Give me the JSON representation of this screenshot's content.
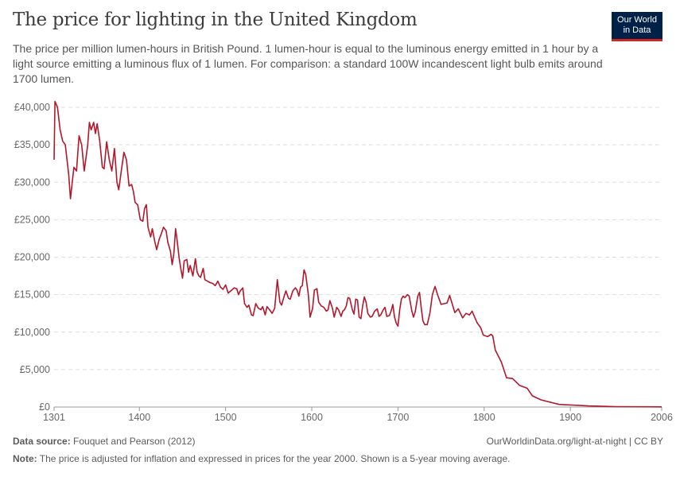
{
  "header": {
    "title": "The price for lighting in the United Kingdom",
    "subtitle": "The price per million lumen-hours in British Pound. 1 lumen-hour is equal to the luminous energy emitted in 1 hour by a light source emitting a luminous flux of 1 lumen. For comparison: a standard 100W incandescent light bulb emits around 1700 lumen.",
    "logo_line1": "Our World",
    "logo_line2": "in Data"
  },
  "footer": {
    "source_label": "Data source:",
    "source": "Fouquet and Pearson (2012)",
    "url": "OurWorldinData.org/light-at-night | CC BY",
    "note_label": "Note:",
    "note": "The price is adjusted for inflation and expressed in prices for the year 2000. Shown is a 5-year moving average."
  },
  "colors": {
    "line": "#b2182b",
    "grid": "#dddddd",
    "logo_bg": "#002147",
    "logo_accent": "#ce261e"
  },
  "chart_data": {
    "type": "line",
    "title": "The price for lighting in the United Kingdom",
    "xlim": [
      1301,
      2006
    ],
    "ylim": [
      0,
      40000
    ],
    "grid": "horizontal dashed",
    "y_ticks": [
      0,
      5000,
      10000,
      15000,
      20000,
      25000,
      30000,
      35000,
      40000
    ],
    "y_tick_labels": [
      "£0",
      "£5,000",
      "£10,000",
      "£15,000",
      "£20,000",
      "£25,000",
      "£30,000",
      "£35,000",
      "£40,000"
    ],
    "x_ticks": [
      1301,
      1400,
      1500,
      1600,
      1700,
      1800,
      1900,
      2006
    ],
    "x_tick_labels": [
      "1301",
      "1400",
      "1500",
      "1600",
      "1700",
      "1800",
      "1900",
      "2006"
    ],
    "series": [
      {
        "points": [
          [
            1301,
            33000
          ],
          [
            1302,
            40800
          ],
          [
            1305,
            40000
          ],
          [
            1308,
            37000
          ],
          [
            1311,
            35500
          ],
          [
            1314,
            35000
          ],
          [
            1318,
            31000
          ],
          [
            1320,
            27800
          ],
          [
            1324,
            32000
          ],
          [
            1327,
            31500
          ],
          [
            1330,
            36200
          ],
          [
            1333,
            35000
          ],
          [
            1336,
            31500
          ],
          [
            1340,
            35000
          ],
          [
            1342,
            38000
          ],
          [
            1344,
            37000
          ],
          [
            1347,
            38000
          ],
          [
            1349,
            36500
          ],
          [
            1351,
            37800
          ],
          [
            1354,
            35500
          ],
          [
            1357,
            32000
          ],
          [
            1359,
            31800
          ],
          [
            1362,
            35400
          ],
          [
            1365,
            33000
          ],
          [
            1368,
            31500
          ],
          [
            1371,
            34500
          ],
          [
            1374,
            30000
          ],
          [
            1376,
            29000
          ],
          [
            1379,
            31500
          ],
          [
            1382,
            34000
          ],
          [
            1385,
            33000
          ],
          [
            1388,
            29500
          ],
          [
            1391,
            29700
          ],
          [
            1393,
            28800
          ],
          [
            1395,
            27300
          ],
          [
            1398,
            27000
          ],
          [
            1401,
            25000
          ],
          [
            1404,
            24800
          ],
          [
            1406,
            26500
          ],
          [
            1408,
            27000
          ],
          [
            1410,
            24000
          ],
          [
            1413,
            22700
          ],
          [
            1415,
            23800
          ],
          [
            1418,
            22000
          ],
          [
            1420,
            21000
          ],
          [
            1423,
            22400
          ],
          [
            1425,
            23000
          ],
          [
            1428,
            24000
          ],
          [
            1431,
            23500
          ],
          [
            1433,
            22000
          ],
          [
            1436,
            20800
          ],
          [
            1438,
            19000
          ],
          [
            1440,
            20500
          ],
          [
            1442,
            23800
          ],
          [
            1444,
            22000
          ],
          [
            1446,
            20000
          ],
          [
            1448,
            18500
          ],
          [
            1450,
            17200
          ],
          [
            1452,
            19500
          ],
          [
            1455,
            19700
          ],
          [
            1457,
            18000
          ],
          [
            1459,
            18900
          ],
          [
            1462,
            17500
          ],
          [
            1465,
            19800
          ],
          [
            1467,
            18000
          ],
          [
            1469,
            17500
          ],
          [
            1471,
            17300
          ],
          [
            1474,
            18500
          ],
          [
            1476,
            17000
          ],
          [
            1479,
            16800
          ],
          [
            1482,
            16600
          ],
          [
            1485,
            16500
          ],
          [
            1488,
            16200
          ],
          [
            1491,
            16800
          ],
          [
            1494,
            16000
          ],
          [
            1497,
            15700
          ],
          [
            1500,
            16300
          ],
          [
            1503,
            15200
          ],
          [
            1506,
            15500
          ],
          [
            1510,
            15900
          ],
          [
            1513,
            15800
          ],
          [
            1515,
            15000
          ],
          [
            1517,
            15500
          ],
          [
            1520,
            15900
          ],
          [
            1522,
            13800
          ],
          [
            1525,
            13300
          ],
          [
            1527,
            13600
          ],
          [
            1530,
            12300
          ],
          [
            1532,
            12200
          ],
          [
            1535,
            13800
          ],
          [
            1538,
            13200
          ],
          [
            1541,
            13000
          ],
          [
            1543,
            13400
          ],
          [
            1546,
            12300
          ],
          [
            1548,
            13400
          ],
          [
            1551,
            13000
          ],
          [
            1554,
            12500
          ],
          [
            1557,
            13200
          ],
          [
            1560,
            17000
          ],
          [
            1563,
            14000
          ],
          [
            1565,
            13600
          ],
          [
            1568,
            14800
          ],
          [
            1570,
            15500
          ],
          [
            1573,
            14500
          ],
          [
            1575,
            14400
          ],
          [
            1578,
            15500
          ],
          [
            1581,
            15900
          ],
          [
            1583,
            15600
          ],
          [
            1585,
            14800
          ],
          [
            1587,
            16000
          ],
          [
            1589,
            16200
          ],
          [
            1591,
            18300
          ],
          [
            1593,
            17700
          ],
          [
            1596,
            15000
          ],
          [
            1598,
            12000
          ],
          [
            1601,
            13200
          ],
          [
            1603,
            15600
          ],
          [
            1606,
            15800
          ],
          [
            1608,
            14000
          ],
          [
            1611,
            13500
          ],
          [
            1614,
            13300
          ],
          [
            1617,
            12800
          ],
          [
            1619,
            13000
          ],
          [
            1621,
            14200
          ],
          [
            1624,
            13200
          ],
          [
            1626,
            12000
          ],
          [
            1629,
            13300
          ],
          [
            1631,
            13000
          ],
          [
            1634,
            12100
          ],
          [
            1636,
            12800
          ],
          [
            1638,
            13000
          ],
          [
            1640,
            13500
          ],
          [
            1642,
            14600
          ],
          [
            1644,
            14500
          ],
          [
            1647,
            13000
          ],
          [
            1649,
            12400
          ],
          [
            1651,
            14400
          ],
          [
            1653,
            14300
          ],
          [
            1655,
            12000
          ],
          [
            1657,
            11800
          ],
          [
            1659,
            13500
          ],
          [
            1661,
            14700
          ],
          [
            1663,
            14000
          ],
          [
            1665,
            12500
          ],
          [
            1668,
            12000
          ],
          [
            1670,
            12100
          ],
          [
            1673,
            12800
          ],
          [
            1676,
            13100
          ],
          [
            1678,
            12100
          ],
          [
            1680,
            12300
          ],
          [
            1683,
            13000
          ],
          [
            1685,
            13300
          ],
          [
            1687,
            12100
          ],
          [
            1690,
            12200
          ],
          [
            1692,
            12800
          ],
          [
            1694,
            13700
          ],
          [
            1696,
            12000
          ],
          [
            1698,
            11200
          ],
          [
            1700,
            10800
          ],
          [
            1702,
            13000
          ],
          [
            1704,
            14400
          ],
          [
            1706,
            14800
          ],
          [
            1708,
            14600
          ],
          [
            1711,
            15000
          ],
          [
            1713,
            14800
          ],
          [
            1716,
            12900
          ],
          [
            1718,
            12000
          ],
          [
            1720,
            12700
          ],
          [
            1723,
            14800
          ],
          [
            1725,
            15300
          ],
          [
            1727,
            13200
          ],
          [
            1729,
            11500
          ],
          [
            1731,
            11000
          ],
          [
            1734,
            11000
          ],
          [
            1737,
            12500
          ],
          [
            1740,
            15000
          ],
          [
            1743,
            16100
          ],
          [
            1746,
            15000
          ],
          [
            1750,
            13700
          ],
          [
            1757,
            13900
          ],
          [
            1760,
            14900
          ],
          [
            1766,
            12600
          ],
          [
            1770,
            13100
          ],
          [
            1775,
            11900
          ],
          [
            1779,
            12500
          ],
          [
            1783,
            12300
          ],
          [
            1786,
            12800
          ],
          [
            1792,
            11200
          ],
          [
            1796,
            10600
          ],
          [
            1799,
            9600
          ],
          [
            1804,
            9400
          ],
          [
            1808,
            9700
          ],
          [
            1810,
            9500
          ],
          [
            1813,
            7600
          ],
          [
            1820,
            6000
          ],
          [
            1826,
            3900
          ],
          [
            1833,
            3800
          ],
          [
            1841,
            2900
          ],
          [
            1850,
            2500
          ],
          [
            1856,
            1500
          ],
          [
            1866,
            950
          ],
          [
            1887,
            350
          ],
          [
            1921,
            150
          ],
          [
            1952,
            50
          ],
          [
            2006,
            20
          ]
        ]
      }
    ]
  }
}
